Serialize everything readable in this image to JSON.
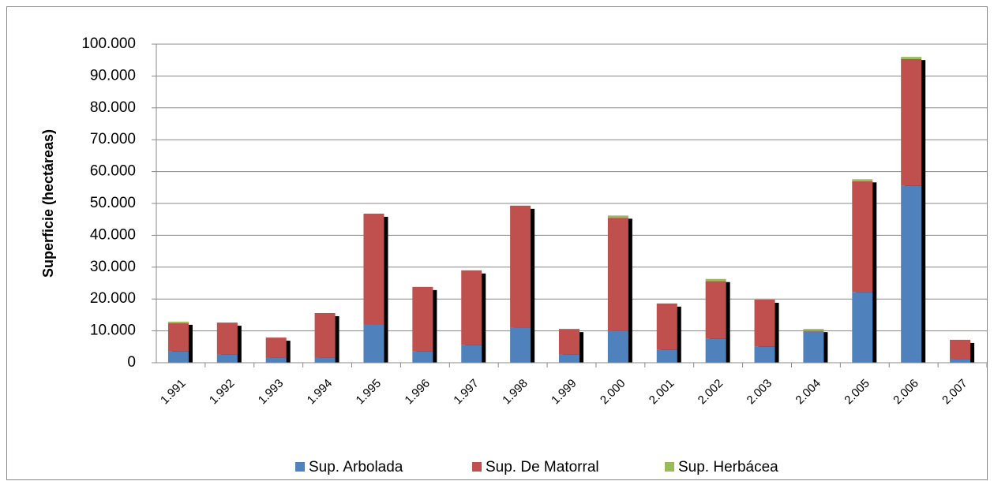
{
  "chart_data": {
    "type": "stacked_bar",
    "y_label": "Superficie (hectáreas)",
    "categories": [
      "1.991",
      "1.992",
      "1.993",
      "1.994",
      "1.995",
      "1.996",
      "1.997",
      "1.998",
      "1.999",
      "2.000",
      "2.001",
      "2.002",
      "2.003",
      "2.004",
      "2.005",
      "2.006",
      "2.007"
    ],
    "series": [
      {
        "name": "Sup. Arbolada",
        "color": "#4f81bd",
        "values": [
          3500,
          2500,
          1500,
          1500,
          12000,
          3500,
          5500,
          11000,
          2500,
          10000,
          4000,
          7500,
          5000,
          9800,
          22200,
          55500,
          1000
        ]
      },
      {
        "name": "Sup. De Matorral",
        "color": "#c0504d",
        "values": [
          8900,
          10100,
          6400,
          14100,
          34800,
          20300,
          23500,
          38300,
          8100,
          35500,
          14600,
          18100,
          14800,
          200,
          34800,
          39800,
          6200
        ]
      },
      {
        "name": "Sup. Herbácea",
        "color": "#9bbb59",
        "values": [
          500,
          0,
          0,
          0,
          0,
          0,
          0,
          0,
          0,
          700,
          0,
          700,
          0,
          600,
          600,
          700,
          0
        ]
      }
    ],
    "ylim": [
      0,
      100000
    ],
    "yticks": [
      0,
      {
        "value": 10000,
        "label": "10.000"
      },
      {
        "value": 20000,
        "label": "20.000"
      },
      {
        "value": 30000,
        "label": "30.000"
      },
      {
        "value": 40000,
        "label": "40.000"
      },
      {
        "value": 50000,
        "label": "50.000"
      },
      {
        "value": 60000,
        "label": "60.000"
      },
      {
        "value": 70000,
        "label": "70.000"
      },
      {
        "value": 80000,
        "label": "80.000"
      },
      {
        "value": 90000,
        "label": "90.000"
      },
      {
        "value": 100000,
        "label": "100.000"
      }
    ],
    "grid": true,
    "legend": "bottom"
  }
}
